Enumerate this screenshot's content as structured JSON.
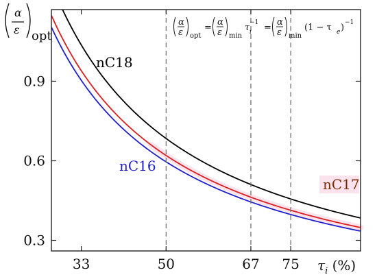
{
  "chart_data": {
    "type": "line",
    "xlim": [
      27,
      89
    ],
    "ylim": [
      0.26,
      1.17
    ],
    "x_ticks": [
      33,
      50,
      67,
      75
    ],
    "y_ticks": [
      0.3,
      0.6,
      0.9
    ],
    "y_tick_labels": [
      "0.3",
      "0.6",
      "0.9"
    ],
    "x_tick_labels": [
      "33",
      "50",
      "67",
      "75"
    ],
    "x_axis_label": {
      "symbol": "τ",
      "sub": "i",
      "unit": " (%)"
    },
    "y_axis_label": {
      "num": "α",
      "den": "ε",
      "sub": "opt"
    },
    "vertical_dashed_lines": [
      50,
      67,
      75
    ],
    "equation": {
      "num": "α",
      "den": "ε",
      "sub_opt": "opt",
      "sub_min": "min",
      "eq": "=",
      "tau": "τ",
      "sub_i": "i",
      "sup": "−1",
      "paren_open": "(1 − τ",
      "sub_e": "e",
      "paren_close": ")"
    },
    "series": [
      {
        "name": "nC18",
        "color": "#000000",
        "k": 0.342,
        "x": [
          27,
          33,
          40,
          50,
          60,
          67,
          75,
          80,
          89
        ],
        "values": [
          1.267,
          1.036,
          0.855,
          0.684,
          0.57,
          0.51,
          0.456,
          0.428,
          0.384
        ]
      },
      {
        "name": "nC17",
        "color": "#dd1f1f",
        "k": 0.31,
        "x": [
          27,
          33,
          40,
          50,
          60,
          67,
          75,
          80,
          89
        ],
        "values": [
          1.148,
          0.939,
          0.775,
          0.62,
          0.517,
          0.463,
          0.413,
          0.388,
          0.348
        ]
      },
      {
        "name": "nC16",
        "color": "#1f1fcc",
        "k": 0.298,
        "x": [
          27,
          33,
          40,
          50,
          60,
          67,
          75,
          80,
          89
        ],
        "values": [
          1.104,
          0.903,
          0.745,
          0.596,
          0.497,
          0.445,
          0.397,
          0.373,
          0.335
        ]
      }
    ],
    "series_label_colors": {
      "nC18": "#000000",
      "nC16": "#1f1fcc",
      "nC17": "#7a2a00"
    }
  }
}
